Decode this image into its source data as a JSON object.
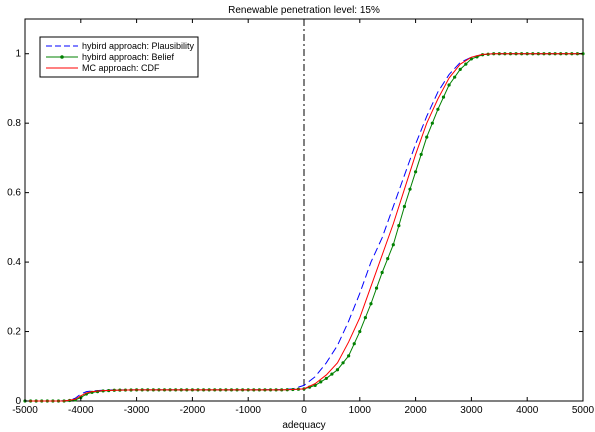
{
  "chart_data": {
    "type": "line",
    "title": "Renewable penetration level: 15%",
    "xlabel": "adequacy",
    "ylabel": "",
    "xlim": [
      -5000,
      5000
    ],
    "ylim": [
      0,
      1.1
    ],
    "xticks": [
      -5000,
      -4000,
      -3000,
      -2000,
      -1000,
      0,
      1000,
      2000,
      3000,
      4000,
      5000
    ],
    "yticks": [
      0,
      0.2,
      0.4,
      0.6,
      0.8,
      1
    ],
    "xtick_labels": [
      "-5000",
      "-4000",
      "-3000",
      "-2000",
      "-1000",
      "0",
      "1000",
      "2000",
      "3000",
      "4000",
      "5000"
    ],
    "ytick_labels": [
      "0",
      "0.2",
      "0.4",
      "0.6",
      "0.8",
      "1"
    ],
    "grid": false,
    "legend_position": "top-left",
    "vertical_reference_line": {
      "x": 0,
      "style": "dash-dot",
      "color": "#000000"
    },
    "series": [
      {
        "name": "hybird approach: Plausibility",
        "color": "#0000ff",
        "style": "dashed",
        "marker": "none",
        "x": [
          -5000,
          -4400,
          -4200,
          -4100,
          -4000,
          -3900,
          -3800,
          -3600,
          -3400,
          -3000,
          -2000,
          -1000,
          -400,
          -200,
          0,
          200,
          400,
          600,
          800,
          1000,
          1200,
          1400,
          1600,
          1800,
          2000,
          2200,
          2400,
          2600,
          2800,
          3000,
          3200,
          3400,
          3600,
          4000,
          5000
        ],
        "y": [
          0,
          0,
          0.002,
          0.008,
          0.02,
          0.027,
          0.029,
          0.031,
          0.032,
          0.032,
          0.032,
          0.032,
          0.033,
          0.035,
          0.045,
          0.07,
          0.11,
          0.16,
          0.23,
          0.31,
          0.4,
          0.47,
          0.56,
          0.65,
          0.74,
          0.82,
          0.89,
          0.94,
          0.975,
          0.99,
          0.998,
          1,
          1,
          1,
          1
        ]
      },
      {
        "name": "hybird approach: Belief",
        "color": "#008000",
        "style": "solid",
        "marker": "dot",
        "x": [
          -5000,
          -4300,
          -4100,
          -4000,
          -3900,
          -3800,
          -3600,
          -3400,
          -3000,
          -2000,
          -1000,
          -400,
          -200,
          0,
          200,
          400,
          600,
          800,
          1000,
          1200,
          1400,
          1600,
          1800,
          2000,
          2200,
          2400,
          2600,
          2800,
          3000,
          3200,
          3400,
          3600,
          4000,
          5000
        ],
        "y": [
          0,
          0,
          0.003,
          0.01,
          0.02,
          0.025,
          0.029,
          0.031,
          0.032,
          0.032,
          0.032,
          0.032,
          0.033,
          0.035,
          0.045,
          0.065,
          0.09,
          0.13,
          0.2,
          0.28,
          0.37,
          0.45,
          0.56,
          0.66,
          0.76,
          0.84,
          0.91,
          0.955,
          0.985,
          0.997,
          1,
          1,
          1,
          1
        ]
      },
      {
        "name": "MC approach: CDF",
        "color": "#ff0000",
        "style": "solid",
        "marker": "none",
        "x": [
          -5000,
          -4300,
          -4100,
          -4000,
          -3900,
          -3800,
          -3600,
          -3400,
          -3000,
          -2000,
          -1000,
          -400,
          -200,
          0,
          200,
          400,
          600,
          800,
          1000,
          1200,
          1400,
          1600,
          1800,
          2000,
          2200,
          2400,
          2600,
          2800,
          3000,
          3200,
          3400,
          3600,
          4000,
          5000
        ],
        "y": [
          0,
          0,
          0.005,
          0.015,
          0.023,
          0.027,
          0.03,
          0.031,
          0.032,
          0.032,
          0.032,
          0.032,
          0.033,
          0.035,
          0.05,
          0.075,
          0.11,
          0.17,
          0.24,
          0.33,
          0.42,
          0.51,
          0.61,
          0.71,
          0.8,
          0.87,
          0.93,
          0.97,
          0.99,
          0.998,
          1,
          1,
          1,
          1
        ]
      }
    ]
  }
}
